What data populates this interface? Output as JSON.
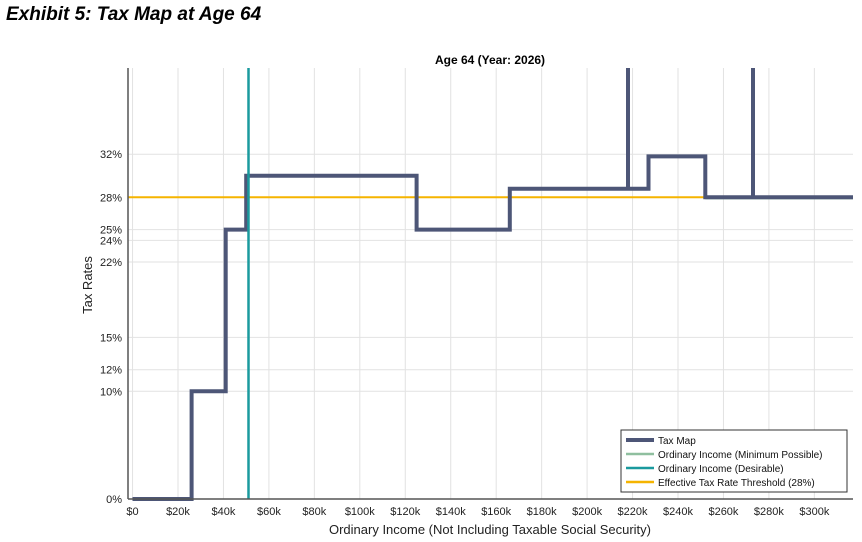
{
  "exhibit_title": "Exhibit 5: Tax Map at Age 64",
  "chart_data": {
    "type": "line",
    "title": "Age 64 (Year: 2026)",
    "xlabel": "Ordinary Income (Not Including Taxable Social Security)",
    "ylabel": "Tax Rates",
    "xlim": [
      -2000,
      317000
    ],
    "ylim": [
      0,
      0.4
    ],
    "x_ticks": [
      {
        "value": 0,
        "label": "$0"
      },
      {
        "value": 20000,
        "label": "$20k"
      },
      {
        "value": 40000,
        "label": "$40k"
      },
      {
        "value": 60000,
        "label": "$60k"
      },
      {
        "value": 80000,
        "label": "$80k"
      },
      {
        "value": 100000,
        "label": "$100k"
      },
      {
        "value": 120000,
        "label": "$120k"
      },
      {
        "value": 140000,
        "label": "$140k"
      },
      {
        "value": 160000,
        "label": "$160k"
      },
      {
        "value": 180000,
        "label": "$180k"
      },
      {
        "value": 200000,
        "label": "$200k"
      },
      {
        "value": 220000,
        "label": "$220k"
      },
      {
        "value": 240000,
        "label": "$240k"
      },
      {
        "value": 260000,
        "label": "$260k"
      },
      {
        "value": 280000,
        "label": "$280k"
      },
      {
        "value": 300000,
        "label": "$300k"
      }
    ],
    "y_ticks": [
      {
        "value": 0,
        "label": "0%"
      },
      {
        "value": 0.1,
        "label": "10%"
      },
      {
        "value": 0.12,
        "label": "12%"
      },
      {
        "value": 0.15,
        "label": "15%"
      },
      {
        "value": 0.22,
        "label": "22%"
      },
      {
        "value": 0.24,
        "label": "24%"
      },
      {
        "value": 0.25,
        "label": "25%"
      },
      {
        "value": 0.28,
        "label": "28%"
      },
      {
        "value": 0.32,
        "label": "32%"
      }
    ],
    "grid": true,
    "legend_position": "bottom-right",
    "series": [
      {
        "name": "Tax Map",
        "color": "#4d5677",
        "width": 4,
        "x": [
          0,
          26000,
          26000,
          41000,
          41000,
          50000,
          50000,
          125000,
          125000,
          166000,
          166000,
          218000,
          218000,
          218000,
          218000,
          227000,
          227000,
          252000,
          252000,
          273000,
          273000,
          273000,
          273000,
          317000
        ],
        "y": [
          0,
          0,
          0.1,
          0.1,
          0.25,
          0.25,
          0.3,
          0.3,
          0.25,
          0.25,
          0.288,
          0.288,
          0.4,
          0.4,
          0.288,
          0.288,
          0.318,
          0.318,
          0.28,
          0.28,
          0.4,
          0.4,
          0.28,
          0.28
        ]
      },
      {
        "name": "Ordinary Income (Minimum Possible)",
        "color": "#8fbf9f",
        "width": 2,
        "x": [
          252000,
          317000
        ],
        "y": [
          0.279,
          0.279
        ]
      },
      {
        "name": "Ordinary Income (Desirable)",
        "color": "#1a9a9e",
        "width": 2.5,
        "x": [
          51000,
          51000
        ],
        "y": [
          0,
          0.4
        ]
      },
      {
        "name": "Effective Tax Rate Threshold (28%)",
        "color": "#f5b400",
        "width": 2,
        "x": [
          -2000,
          317000
        ],
        "y": [
          0.28,
          0.28
        ]
      }
    ]
  }
}
